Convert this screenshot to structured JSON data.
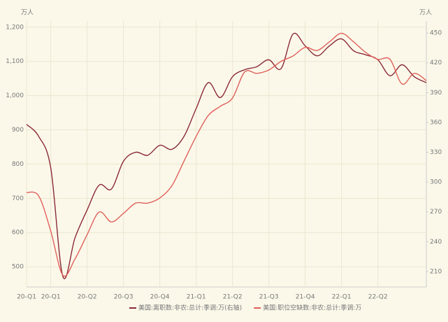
{
  "chart_data": {
    "type": "line",
    "y_label": "万人",
    "y2_label": "万人",
    "categories": [
      "20-Q1",
      null,
      "20-Q1",
      null,
      null,
      "20-Q2",
      null,
      null,
      "20-Q3",
      null,
      null,
      "20-Q4",
      null,
      null,
      "21-Q1",
      null,
      null,
      "21-Q2",
      null,
      null,
      "21-Q3",
      null,
      null,
      "21-Q4",
      null,
      null,
      "22-Q1",
      null,
      null,
      "22-Q2",
      null,
      null,
      null,
      null
    ],
    "series": [
      {
        "name": "美国:离职数:非农:总计:季调:万(右轴)",
        "color": "#8b2a35",
        "axis": "y2",
        "values": [
          358,
          346,
          314,
          205,
          244,
          272,
          297,
          293,
          321,
          330,
          327,
          337,
          333,
          346,
          374,
          400,
          385,
          406,
          413,
          416,
          423,
          414,
          449,
          437,
          427,
          437,
          444,
          432,
          428,
          423,
          407,
          418,
          406,
          400
        ]
      },
      {
        "name": "美国:职位空缺数:非农:总计:季调:万",
        "color": "#e0605a",
        "values": [
          717,
          707,
          604,
          475,
          523,
          594,
          660,
          631,
          656,
          686,
          686,
          701,
          737,
          809,
          881,
          942,
          969,
          993,
          1069,
          1065,
          1075,
          1100,
          1116,
          1141,
          1132,
          1157,
          1182,
          1157,
          1126,
          1106,
          1106,
          1034,
          1065,
          1044
        ]
      }
    ],
    "ylim": [
      441,
      1218
    ],
    "yticks": [
      500,
      600,
      700,
      800,
      900,
      {
        "value": 1000,
        "label": "1,000"
      },
      {
        "value": 1100,
        "label": "1,100"
      },
      {
        "value": 1200,
        "label": "1,200"
      }
    ],
    "y2lim": [
      194.5,
      462
    ],
    "y2ticks": [
      210,
      240,
      270,
      300,
      330,
      360,
      390,
      420,
      450
    ],
    "grid": true
  }
}
